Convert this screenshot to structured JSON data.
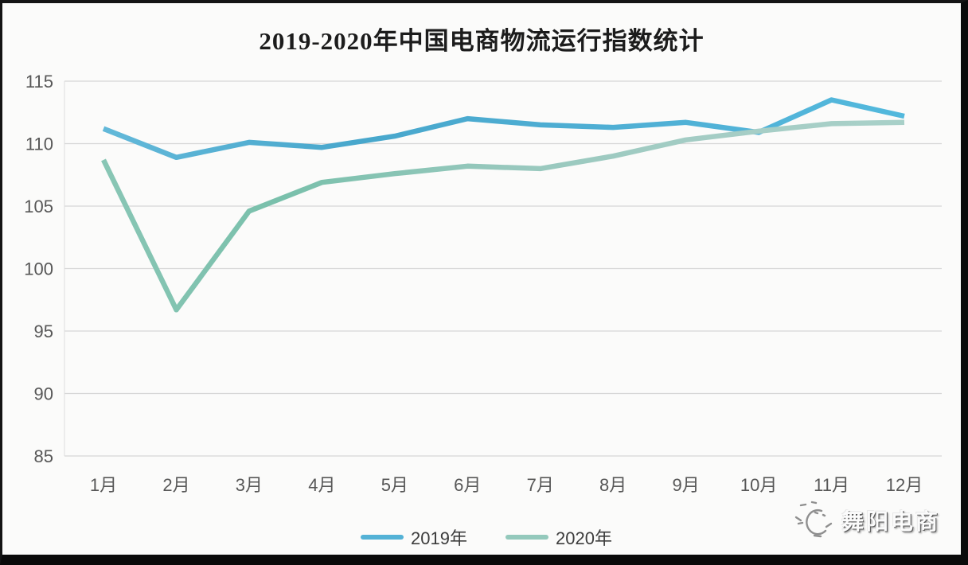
{
  "title": "2019-2020年中国电商物流运行指数统计",
  "chart_data": {
    "type": "line",
    "title": "2019-2020年中国电商物流运行指数统计",
    "categories": [
      "1月",
      "2月",
      "3月",
      "4月",
      "5月",
      "6月",
      "7月",
      "8月",
      "9月",
      "10月",
      "11月",
      "12月"
    ],
    "series": [
      {
        "name": "2019年",
        "color": "#54b2d6",
        "gradient": [
          "#66bbdb",
          "#48a7cc",
          "#50b0d5",
          "#53bade"
        ],
        "values": [
          111.2,
          108.9,
          110.1,
          109.7,
          110.6,
          112.0,
          111.5,
          111.3,
          111.7,
          110.9,
          113.5,
          112.2
        ]
      },
      {
        "name": "2020年",
        "color": "#94c9bc",
        "gradient": [
          "#8cc7b7",
          "#79c0ab",
          "#97c8bd",
          "#a5cdc5",
          "#a9d1c9"
        ],
        "values": [
          108.7,
          96.7,
          104.6,
          106.9,
          107.6,
          108.2,
          108.0,
          109.0,
          110.3,
          111.0,
          111.6,
          111.7
        ]
      }
    ],
    "ylim": [
      85,
      115
    ],
    "yticks": [
      85,
      90,
      95,
      100,
      105,
      110,
      115
    ],
    "grid": true,
    "gridline_color": "#d7d7d7",
    "tick_label_color": "#575757",
    "legend_position": "bottom"
  },
  "watermark": {
    "text": "舞阳电商",
    "icon": "doodle-face-icon"
  }
}
